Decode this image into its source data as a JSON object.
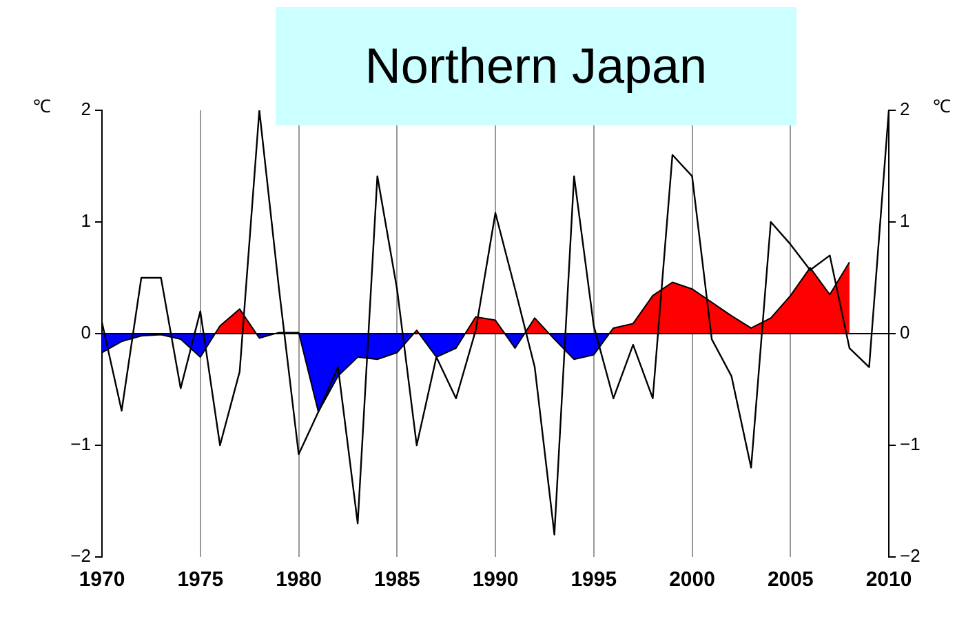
{
  "chart_data": {
    "type": "line",
    "title": "Northern Japan",
    "ylabel": "℃",
    "y2label": "℃",
    "x": [
      1970,
      1971,
      1972,
      1973,
      1974,
      1975,
      1976,
      1977,
      1978,
      1979,
      1980,
      1981,
      1982,
      1983,
      1984,
      1985,
      1986,
      1987,
      1988,
      1989,
      1990,
      1991,
      1992,
      1993,
      1994,
      1995,
      1996,
      1997,
      1998,
      1999,
      2000,
      2001,
      2002,
      2003,
      2004,
      2005,
      2006,
      2007,
      2008,
      2009,
      2010
    ],
    "series": [
      {
        "type": "area",
        "color": "#ff0000",
        "colors": [
          "#0000ff",
          "#0000ff",
          "#0000ff",
          "#0000ff",
          "#0000ff",
          "#0000ff",
          "#ff0000",
          "#ff0000",
          "#0000ff",
          "#ff0000",
          "#ff0000",
          "#0000ff",
          "#0000ff",
          "#0000ff",
          "#0000ff",
          "#0000ff",
          "#ff0000",
          "#0000ff",
          "#0000ff",
          "#ff0000",
          "#ff0000",
          "#0000ff",
          "#ff0000",
          "#0000ff",
          "#0000ff",
          "#0000ff",
          "#ff0000",
          "#ff0000",
          "#ff0000",
          "#ff0000",
          "#ff0000",
          "#ff0000",
          "#ff0000",
          "#ff0000",
          "#ff0000",
          "#ff0000",
          "#ff0000",
          "#ff0000",
          "#ff0000",
          null,
          null
        ],
        "values": [
          -0.17,
          -0.07,
          -0.02,
          -0.01,
          -0.05,
          -0.21,
          0.07,
          0.22,
          -0.04,
          0.01,
          0.01,
          -0.7,
          -0.38,
          -0.21,
          -0.23,
          -0.17,
          0.03,
          -0.21,
          -0.13,
          0.15,
          0.12,
          -0.13,
          0.14,
          -0.05,
          -0.23,
          -0.19,
          0.05,
          0.09,
          0.34,
          0.46,
          0.4,
          0.28,
          0.16,
          0.05,
          0.14,
          0.34,
          0.59,
          0.35,
          0.64,
          null,
          null
        ]
      },
      {
        "type": "line",
        "color": "#000000",
        "values": [
          0.1,
          -0.69,
          0.5,
          0.5,
          -0.49,
          0.2,
          -1.0,
          -0.34,
          2.0,
          0.4,
          -1.08,
          -0.7,
          -0.3,
          -1.7,
          1.41,
          0.4,
          -1.0,
          -0.21,
          -0.58,
          0.03,
          1.08,
          0.4,
          -0.3,
          -1.8,
          1.41,
          0.07,
          -0.58,
          -0.1,
          -0.58,
          1.6,
          1.41,
          -0.05,
          -0.38,
          -1.2,
          1.0,
          0.8,
          0.57,
          0.7,
          -0.13,
          -0.3,
          2.0
        ]
      }
    ],
    "xlim": [
      1970,
      2010
    ],
    "xticks": [
      1970,
      1975,
      1980,
      1985,
      1990,
      1995,
      2000,
      2005,
      2010
    ],
    "ylim": [
      -2,
      2
    ],
    "yticks": [
      -2,
      -1,
      0,
      1,
      2
    ],
    "y2lim": [
      -2,
      2
    ],
    "y2ticks": [
      -2,
      -1,
      0,
      1,
      2
    ],
    "grid": "x",
    "legend": false,
    "marker": "none",
    "line_style": "solid"
  }
}
